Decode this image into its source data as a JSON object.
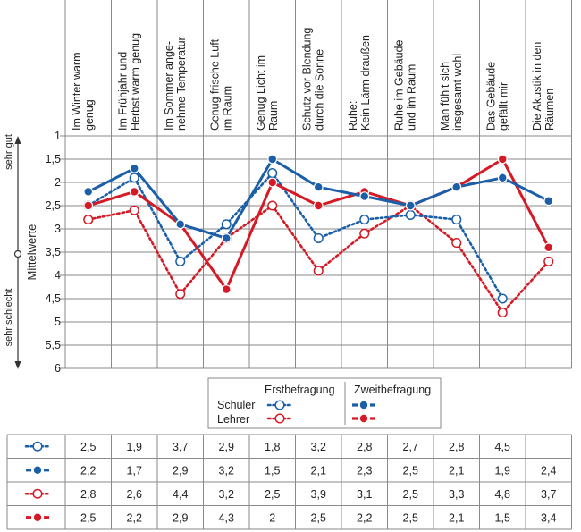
{
  "chart_data": {
    "type": "line",
    "categories": [
      "Im Winter warm genug",
      "Im Frühjahr und Herbst warm genug",
      "Im Sommer angenehme Temperatur",
      "Genug frische Luft im Raum",
      "Genug Licht im Raum",
      "Schutz vor Blendung durch die Sonne",
      "Ruhe: Kein Lärm draußen",
      "Ruhe im Gebäude und im Raum",
      "Man fühlt sich insgesamt wohl",
      "Das Gebäude gefällt mir",
      "Die Akustik in den Räumen"
    ],
    "category_lines": [
      [
        "Im Winter warm",
        "genug"
      ],
      [
        "Im Frühjahr und",
        "Herbst warm genug"
      ],
      [
        "Im Sommer ange-",
        "nehme Temperatur"
      ],
      [
        "Genug frische Luft",
        "im Raum"
      ],
      [
        "Genug Licht im",
        "Raum"
      ],
      [
        "Schutz vor Blendung",
        "durch die Sonne"
      ],
      [
        "Ruhe:",
        "Kein Lärm draußen"
      ],
      [
        "Ruhe im Gebäude",
        "und im Raum"
      ],
      [
        "Man fühlt sich",
        "insgesamt wohl"
      ],
      [
        "Das Gebäude",
        "gefällt mir"
      ],
      [
        "Die Akustik in den",
        "Räumen"
      ]
    ],
    "ylabel": "Mittelwerte",
    "ylim": [
      1,
      6
    ],
    "y_inverted": true,
    "yticks": [
      "1",
      "1,5",
      "2",
      "2,5",
      "3",
      "3,5",
      "4",
      "4,5",
      "5",
      "5,5",
      "6"
    ],
    "y_top_label": "sehr gut",
    "y_bottom_label": "sehr schlecht",
    "series": [
      {
        "name": "Schüler Erstbefragung",
        "color": "#1a5fa8",
        "dashed": true,
        "marker": "open",
        "values": [
          2.5,
          1.9,
          3.7,
          2.9,
          1.8,
          3.2,
          2.8,
          2.7,
          2.8,
          4.5,
          null
        ]
      },
      {
        "name": "Schüler Zweitbefragung",
        "color": "#1a5fa8",
        "dashed": false,
        "marker": "filled",
        "values": [
          2.2,
          1.7,
          2.9,
          3.2,
          1.5,
          2.1,
          2.3,
          2.5,
          2.1,
          1.9,
          2.4
        ]
      },
      {
        "name": "Lehrer Erstbefragung",
        "color": "#d51a26",
        "dashed": true,
        "marker": "open",
        "values": [
          2.8,
          2.6,
          4.4,
          3.2,
          2.5,
          3.9,
          3.1,
          2.5,
          3.3,
          4.8,
          3.7
        ]
      },
      {
        "name": "Lehrer Zweitbefragung",
        "color": "#d51a26",
        "dashed": false,
        "marker": "filled",
        "values": [
          2.5,
          2.2,
          2.9,
          4.3,
          2.0,
          2.5,
          2.2,
          2.5,
          2.1,
          1.5,
          3.4
        ]
      }
    ],
    "legend": {
      "col_erst": "Erstbefragung",
      "col_zweit": "Zweitbefragung",
      "row_schueler": "Schüler",
      "row_lehrer": "Lehrer"
    },
    "table_rows": [
      [
        "2,5",
        "1,9",
        "3,7",
        "2,9",
        "1,8",
        "3,2",
        "2,8",
        "2,7",
        "2,8",
        "4,5",
        ""
      ],
      [
        "2,2",
        "1,7",
        "2,9",
        "3,2",
        "1,5",
        "2,1",
        "2,3",
        "2,5",
        "2,1",
        "1,9",
        "2,4"
      ],
      [
        "2,8",
        "2,6",
        "4,4",
        "3,2",
        "2,5",
        "3,9",
        "3,1",
        "2,5",
        "3,3",
        "4,8",
        "3,7"
      ],
      [
        "2,5",
        "2,2",
        "2,9",
        "4,3",
        "2",
        "2,5",
        "2,2",
        "2,5",
        "2,1",
        "1,5",
        "3,4"
      ]
    ]
  }
}
